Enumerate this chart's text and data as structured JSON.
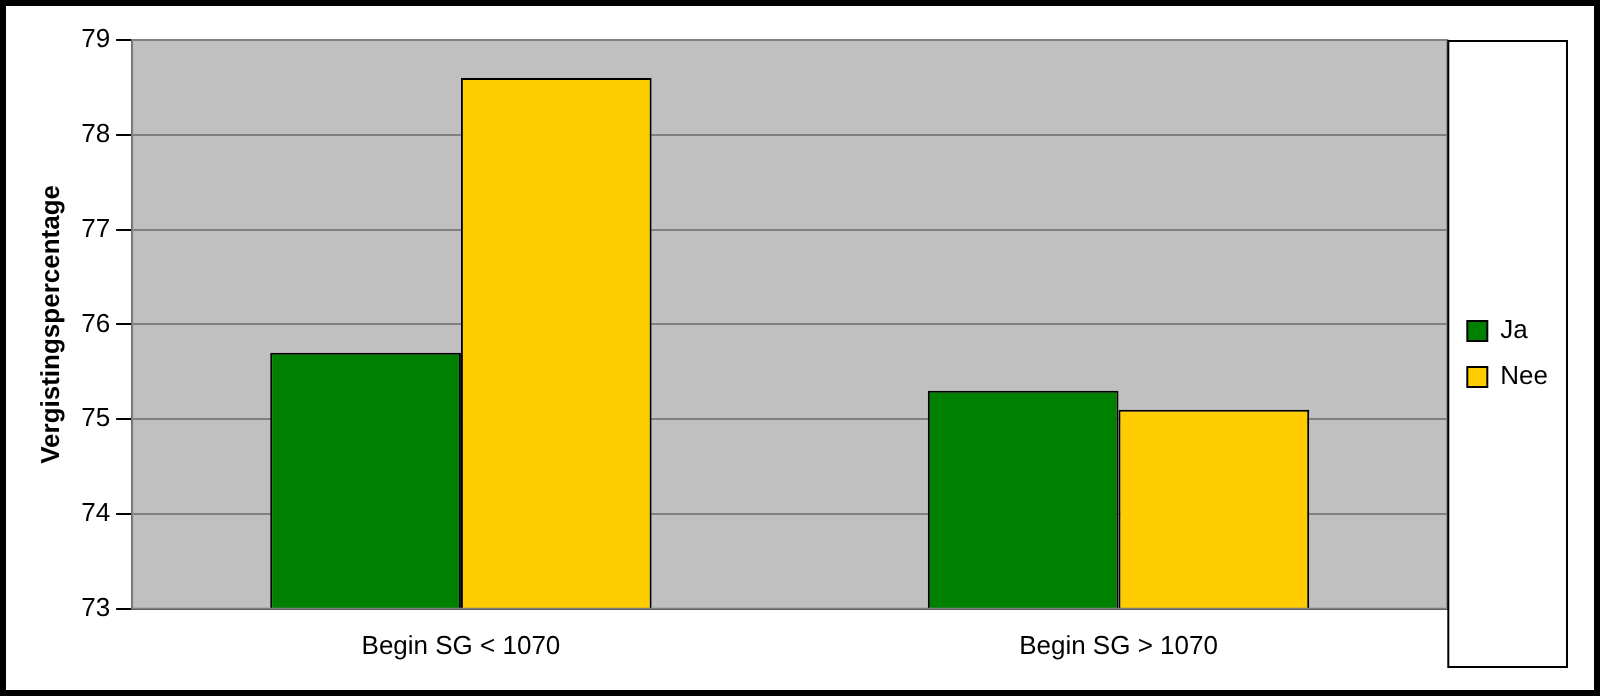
{
  "chart_data": {
    "type": "bar",
    "ylabel": "Vergistingspercentage",
    "categories": [
      "Begin SG < 1070",
      "Begin SG > 1070"
    ],
    "series": [
      {
        "name": "Ja",
        "color": "#008000",
        "values": [
          75.7,
          75.3
        ]
      },
      {
        "name": "Nee",
        "color": "#ffcc00",
        "values": [
          78.6,
          75.1
        ]
      }
    ],
    "ylim": [
      73,
      79
    ],
    "yticks": [
      73,
      74,
      75,
      76,
      77,
      78,
      79
    ],
    "grid": "y",
    "legend": "right"
  }
}
